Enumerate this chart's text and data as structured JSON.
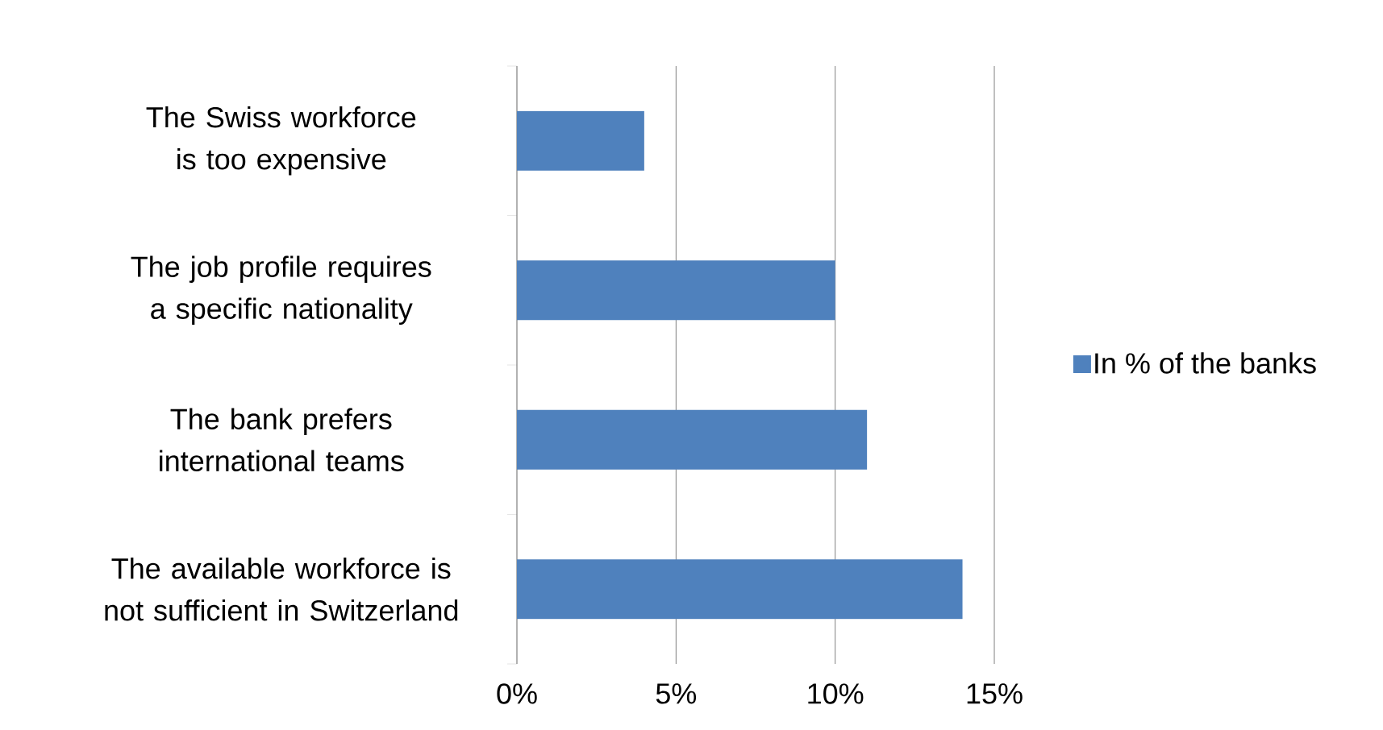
{
  "chart_data": {
    "type": "bar",
    "orientation": "horizontal",
    "categories": [
      "The Swiss workforce is too expensive",
      "The job profile requires a specific nationality",
      "The bank prefers international teams",
      "The available workforce is not sufficient in Switzerland"
    ],
    "series": [
      {
        "name": "In % of the banks",
        "color": "#4f81bd",
        "values": [
          4,
          10,
          11,
          14
        ]
      }
    ],
    "xlim": [
      0,
      15
    ],
    "xticks": [
      {
        "value": 0,
        "label": "0%"
      },
      {
        "value": 5,
        "label": "5%"
      },
      {
        "value": 10,
        "label": "10%"
      },
      {
        "value": 15,
        "label": "15%"
      }
    ],
    "grid": "x",
    "legend": "right"
  }
}
